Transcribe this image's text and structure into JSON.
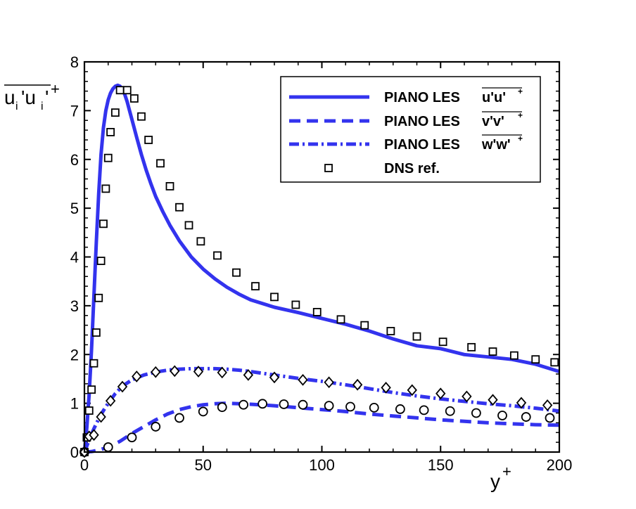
{
  "chart_data": {
    "type": "line",
    "title": "",
    "xlabel": "y",
    "xlabel_sup": "+",
    "ylabel": "u",
    "ylabel_parts": [
      "u",
      "i",
      "'u",
      "i",
      "'",
      "+"
    ],
    "xlim": [
      0,
      200
    ],
    "ylim": [
      0,
      8
    ],
    "xticks": [
      0,
      50,
      100,
      150,
      200
    ],
    "xtick_labels": [
      "0",
      "50",
      "100",
      "150",
      "200"
    ],
    "yticks": [
      0,
      1,
      2,
      3,
      4,
      5,
      6,
      7,
      8
    ],
    "ytick_labels": [
      "0",
      "1",
      "2",
      "3",
      "4",
      "5",
      "6",
      "7",
      "8"
    ],
    "grid": false,
    "legend_position": "top-right",
    "line_color": "#3333ee",
    "marker_color": "#000000",
    "series": [
      {
        "name": "PIANO LES",
        "name_suffix": "u'u'",
        "name_sup": "+",
        "style": "solid",
        "x": [
          0,
          1,
          2,
          3,
          4,
          5,
          6,
          7,
          8,
          9,
          10,
          11,
          12,
          13,
          14,
          15,
          16,
          17,
          18,
          19,
          20,
          22,
          24,
          26,
          28,
          30,
          33,
          36,
          40,
          45,
          50,
          55,
          60,
          65,
          70,
          80,
          90,
          100,
          110,
          120,
          130,
          140,
          150,
          160,
          170,
          180,
          190,
          200
        ],
        "y": [
          0,
          0.5,
          1.2,
          2.1,
          3.2,
          4.3,
          5.3,
          6.1,
          6.65,
          7.0,
          7.22,
          7.36,
          7.45,
          7.5,
          7.52,
          7.5,
          7.44,
          7.33,
          7.18,
          7.0,
          6.82,
          6.45,
          6.1,
          5.78,
          5.5,
          5.24,
          4.93,
          4.65,
          4.33,
          4.0,
          3.75,
          3.55,
          3.38,
          3.24,
          3.12,
          2.97,
          2.86,
          2.74,
          2.62,
          2.48,
          2.32,
          2.18,
          2.12,
          2.0,
          1.95,
          1.9,
          1.8,
          1.65
        ]
      },
      {
        "name": "PIANO LES",
        "name_suffix": "v'v'",
        "name_sup": "+",
        "style": "dashed",
        "x": [
          0,
          3,
          6,
          10,
          15,
          20,
          25,
          30,
          35,
          40,
          45,
          50,
          55,
          60,
          65,
          70,
          80,
          90,
          100,
          110,
          120,
          130,
          140,
          150,
          160,
          170,
          180,
          190,
          200
        ],
        "y": [
          0,
          0.01,
          0.04,
          0.1,
          0.22,
          0.38,
          0.52,
          0.66,
          0.78,
          0.87,
          0.93,
          0.97,
          0.99,
          1.0,
          0.99,
          0.98,
          0.95,
          0.91,
          0.87,
          0.83,
          0.78,
          0.74,
          0.7,
          0.66,
          0.63,
          0.6,
          0.58,
          0.56,
          0.55
        ]
      },
      {
        "name": "PIANO LES",
        "name_suffix": "w'w'",
        "name_sup": "+",
        "style": "dashdot",
        "x": [
          0,
          2,
          4,
          6,
          8,
          10,
          13,
          16,
          20,
          25,
          30,
          35,
          40,
          45,
          50,
          55,
          60,
          65,
          70,
          80,
          90,
          100,
          110,
          120,
          130,
          140,
          150,
          160,
          170,
          180,
          190,
          200
        ],
        "y": [
          0,
          0.25,
          0.48,
          0.68,
          0.85,
          1.0,
          1.2,
          1.35,
          1.48,
          1.58,
          1.64,
          1.68,
          1.7,
          1.71,
          1.71,
          1.71,
          1.7,
          1.68,
          1.65,
          1.58,
          1.51,
          1.45,
          1.38,
          1.3,
          1.22,
          1.15,
          1.09,
          1.04,
          0.99,
          0.95,
          0.9,
          0.84
        ]
      }
    ],
    "reference": {
      "name": "DNS ref.",
      "marker_style": "square",
      "uu": {
        "marker": "square",
        "x": [
          0,
          1,
          2,
          3,
          4,
          5,
          6,
          7,
          8,
          9,
          10,
          11,
          13,
          15,
          18,
          21,
          24,
          27,
          32,
          36,
          40,
          44,
          49,
          56,
          64,
          72,
          80,
          89,
          98,
          108,
          118,
          129,
          140,
          151,
          163,
          172,
          181,
          190,
          198
        ],
        "y": [
          0,
          0.3,
          0.85,
          1.28,
          1.82,
          2.45,
          3.16,
          3.92,
          4.68,
          5.4,
          6.03,
          6.56,
          6.96,
          7.42,
          7.42,
          7.25,
          6.88,
          6.4,
          5.92,
          5.45,
          5.02,
          4.65,
          4.32,
          4.03,
          3.68,
          3.4,
          3.18,
          3.02,
          2.87,
          2.72,
          2.6,
          2.48,
          2.37,
          2.26,
          2.15,
          2.06,
          1.98,
          1.9,
          1.84
        ]
      },
      "vv": {
        "marker": "circle",
        "x": [
          0,
          10,
          20,
          30,
          40,
          50,
          58,
          67,
          75,
          84,
          92,
          103,
          112,
          122,
          133,
          143,
          154,
          165,
          176,
          186,
          196
        ],
        "y": [
          0,
          0.1,
          0.3,
          0.52,
          0.7,
          0.83,
          0.92,
          0.97,
          0.99,
          0.98,
          0.97,
          0.95,
          0.93,
          0.91,
          0.88,
          0.86,
          0.84,
          0.8,
          0.75,
          0.72,
          0.7
        ]
      },
      "ww": {
        "marker": "diamond",
        "x": [
          0,
          2,
          4,
          7,
          11,
          16,
          22,
          30,
          38,
          48,
          58,
          69,
          80,
          92,
          103,
          115,
          127,
          138,
          150,
          161,
          172,
          184,
          195
        ],
        "y": [
          0,
          0.32,
          0.35,
          0.72,
          1.05,
          1.34,
          1.55,
          1.64,
          1.66,
          1.65,
          1.63,
          1.58,
          1.53,
          1.48,
          1.43,
          1.38,
          1.32,
          1.27,
          1.2,
          1.14,
          1.07,
          1.01,
          0.96
        ]
      }
    }
  }
}
